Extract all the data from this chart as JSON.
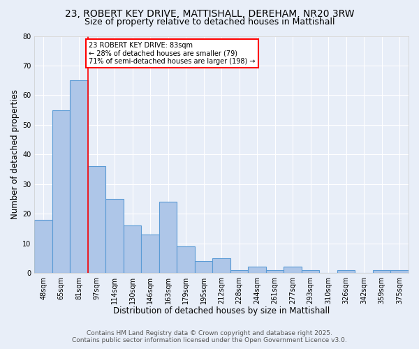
{
  "title_line1": "23, ROBERT KEY DRIVE, MATTISHALL, DEREHAM, NR20 3RW",
  "title_line2": "Size of property relative to detached houses in Mattishall",
  "xlabel": "Distribution of detached houses by size in Mattishall",
  "ylabel": "Number of detached properties",
  "bin_labels": [
    "48sqm",
    "65sqm",
    "81sqm",
    "97sqm",
    "114sqm",
    "130sqm",
    "146sqm",
    "163sqm",
    "179sqm",
    "195sqm",
    "212sqm",
    "228sqm",
    "244sqm",
    "261sqm",
    "277sqm",
    "293sqm",
    "310sqm",
    "326sqm",
    "342sqm",
    "359sqm",
    "375sqm"
  ],
  "bar_heights": [
    18,
    55,
    65,
    36,
    25,
    16,
    13,
    24,
    9,
    4,
    5,
    1,
    2,
    1,
    2,
    1,
    0,
    1,
    0,
    1,
    1
  ],
  "bar_color": "#aec6e8",
  "bar_edge_color": "#5b9bd5",
  "red_line_x": 2.5,
  "annotation_text": "23 ROBERT KEY DRIVE: 83sqm\n← 28% of detached houses are smaller (79)\n71% of semi-detached houses are larger (198) →",
  "annotation_box_color": "white",
  "annotation_box_edge_color": "red",
  "red_line_color": "red",
  "ylim": [
    0,
    80
  ],
  "yticks": [
    0,
    10,
    20,
    30,
    40,
    50,
    60,
    70,
    80
  ],
  "footer_line1": "Contains HM Land Registry data © Crown copyright and database right 2025.",
  "footer_line2": "Contains public sector information licensed under the Open Government Licence v3.0.",
  "bg_color": "#e8eef8",
  "grid_color": "white",
  "title_fontsize": 10,
  "subtitle_fontsize": 9,
  "axis_label_fontsize": 8.5,
  "tick_fontsize": 7,
  "annotation_fontsize": 7,
  "footer_fontsize": 6.5
}
